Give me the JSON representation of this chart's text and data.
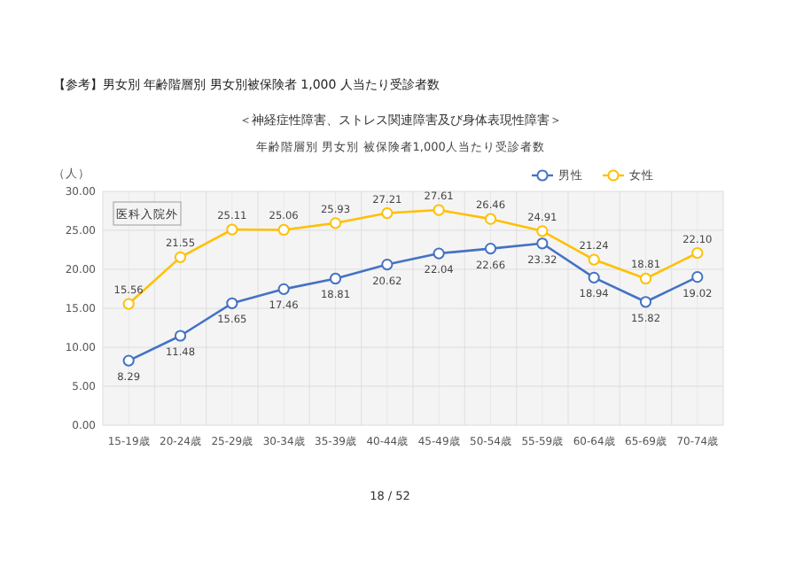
{
  "chart_data": {
    "type": "line",
    "title": "年齢階層別 男女別 被保険者1,000人当たり受診者数",
    "subtitle": "＜神経症性障害、ストレス関連障害及び身体表現性障害＞",
    "ylabel": "（人）",
    "annotations": [
      "【参考】男女別 年齢階層別 男女別被保険者 1,000 人当たり受診者数",
      "医科入院外",
      "18 / 52"
    ],
    "categories": [
      "15-19歳",
      "20-24歳",
      "25-29歳",
      "30-34歳",
      "35-39歳",
      "40-44歳",
      "45-49歳",
      "50-54歳",
      "55-59歳",
      "60-64歳",
      "65-69歳",
      "70-74歳"
    ],
    "series": [
      {
        "name": "男性",
        "color": "#4472c4",
        "values": [
          8.29,
          11.48,
          15.65,
          17.46,
          18.81,
          20.62,
          22.04,
          22.66,
          23.32,
          18.94,
          15.82,
          19.02
        ],
        "value_labels": [
          "8.29",
          "11.48",
          "15.65",
          "17.46",
          "18.81",
          "20.62",
          "22.04",
          "22.66",
          "23.32",
          "18.94",
          "15.82",
          "19.02"
        ]
      },
      {
        "name": "女性",
        "color": "#ffc000",
        "values": [
          15.56,
          21.55,
          25.11,
          25.06,
          25.93,
          27.21,
          27.61,
          26.46,
          24.91,
          21.24,
          18.81,
          22.1
        ],
        "value_labels": [
          "15.56",
          "21.55",
          "25.11",
          "25.06",
          "25.93",
          "27.21",
          "27.61",
          "26.46",
          "24.91",
          "21.24",
          "18.81",
          "22.10"
        ]
      }
    ],
    "ylim": [
      0,
      30
    ],
    "yticks": [
      {
        "value": 0,
        "label": "0.00"
      },
      {
        "value": 5,
        "label": "5.00"
      },
      {
        "value": 10,
        "label": "10.00"
      },
      {
        "value": 15,
        "label": "15.00"
      },
      {
        "value": 20,
        "label": "20.00"
      },
      {
        "value": 25,
        "label": "25.00"
      },
      {
        "value": 30,
        "label": "30.00"
      }
    ],
    "grid": true,
    "legend": "top right",
    "marker": "circle",
    "line_style": "solid"
  }
}
